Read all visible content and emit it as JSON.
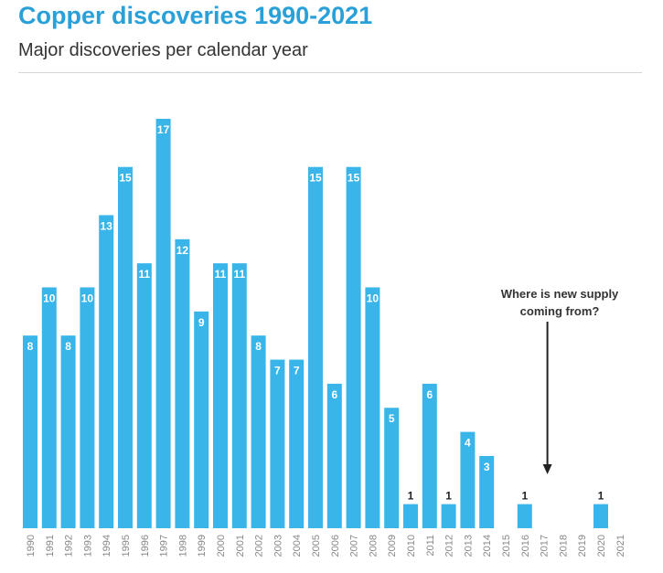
{
  "header": {
    "title": "Copper discoveries 1990-2021",
    "subtitle": "Major discoveries per calendar year"
  },
  "colors": {
    "bar": "#3ab5ea",
    "title": "#2aa0d8",
    "bar_label_inside": "#ffffff",
    "bar_label_outside": "#222222",
    "tick_label": "#888888",
    "annotation": "#333333"
  },
  "chart_data": {
    "type": "bar",
    "title": "Copper discoveries 1990-2021",
    "subtitle": "Major discoveries per calendar year",
    "xlabel": "",
    "ylabel": "",
    "ylim": [
      0,
      17
    ],
    "grid": false,
    "legend": "none",
    "categories": [
      "1990",
      "1991",
      "1992",
      "1993",
      "1994",
      "1995",
      "1996",
      "1997",
      "1998",
      "1999",
      "2000",
      "2001",
      "2002",
      "2003",
      "2004",
      "2005",
      "2006",
      "2007",
      "2008",
      "2009",
      "2010",
      "2011",
      "2012",
      "2013",
      "2014",
      "2015",
      "2016",
      "2017",
      "2018",
      "2019",
      "2020",
      "2021"
    ],
    "values": [
      8,
      10,
      8,
      10,
      13,
      15,
      11,
      17,
      12,
      9,
      11,
      11,
      8,
      7,
      7,
      15,
      6,
      15,
      10,
      5,
      1,
      6,
      1,
      4,
      3,
      0,
      1,
      0,
      0,
      0,
      1,
      0
    ],
    "annotation": {
      "text_lines": [
        "Where is new supply",
        "coming from?"
      ],
      "points_to": "2017"
    }
  }
}
